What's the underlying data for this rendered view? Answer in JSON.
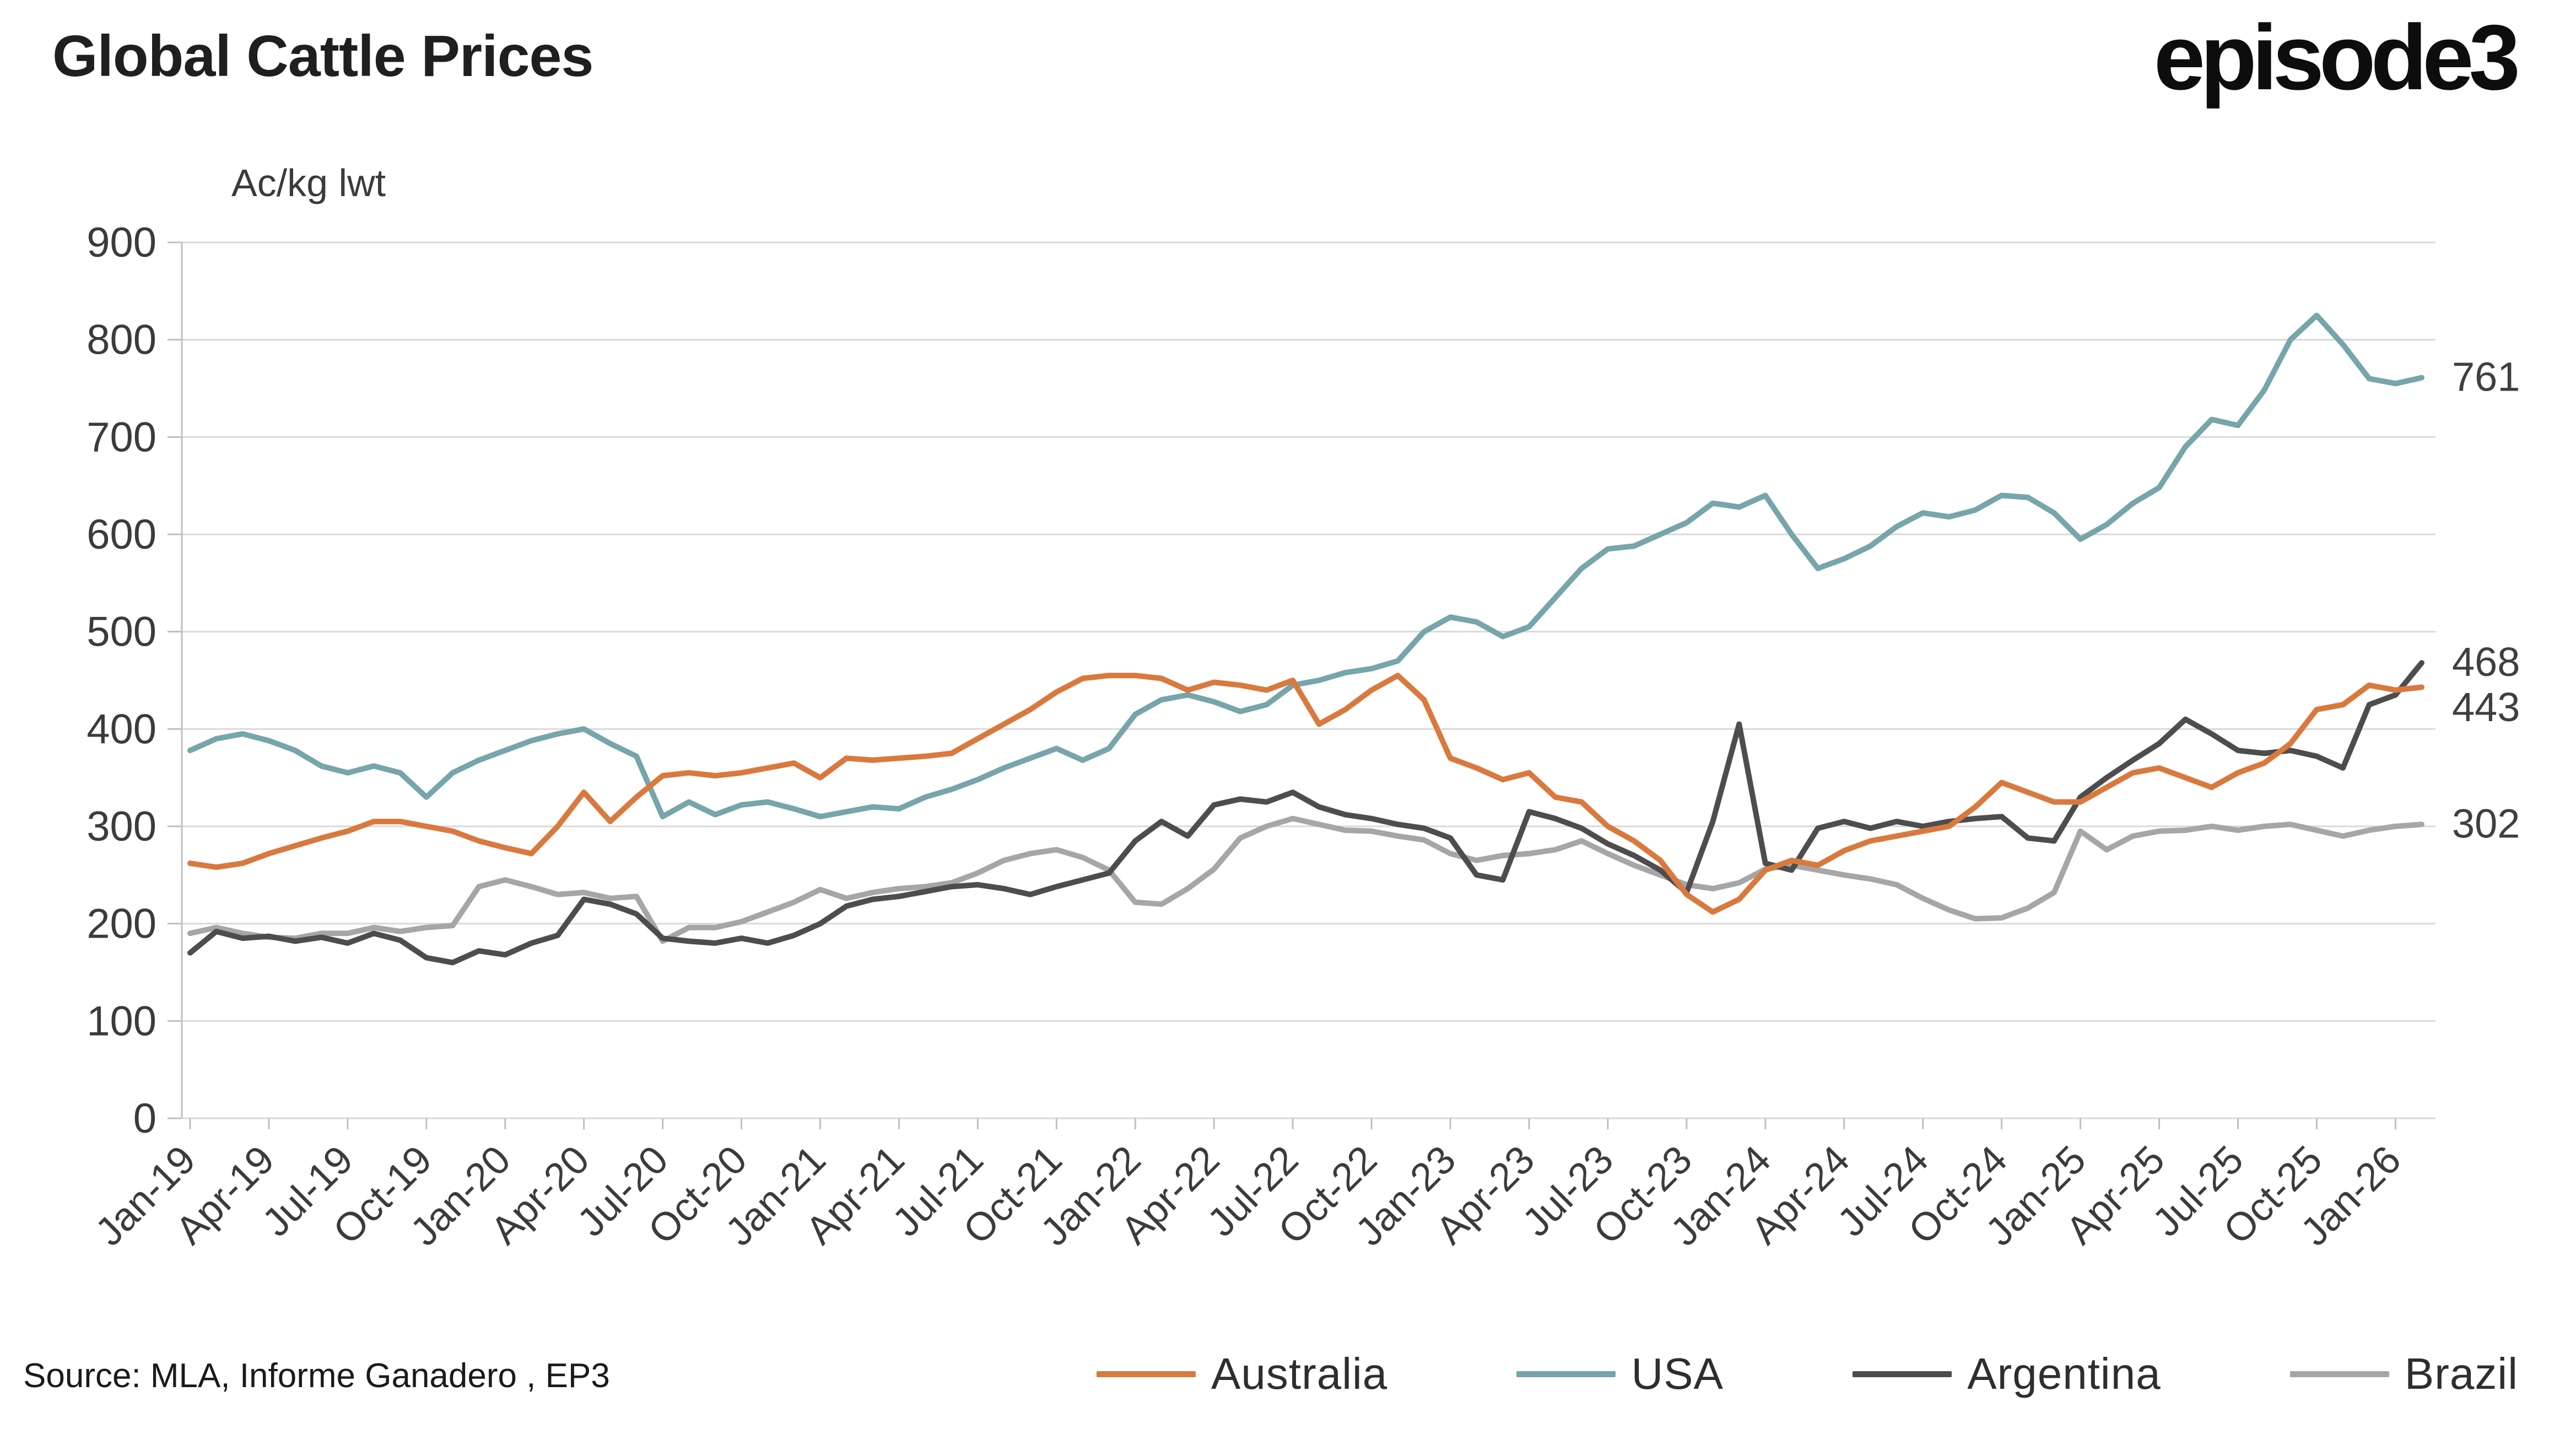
{
  "header": {
    "title": "Global Cattle Prices",
    "logo_text": "episode3"
  },
  "chart_data": {
    "type": "line",
    "title": "Global Cattle Prices",
    "unit_label": "Ac/kg lwt",
    "ylim": [
      0,
      900
    ],
    "y_tick_labels": [
      "0",
      "100",
      "200",
      "300",
      "400",
      "500",
      "600",
      "700",
      "800",
      "900"
    ],
    "x_tick_labels": [
      "Jan-19",
      "Apr-19",
      "Jul-19",
      "Oct-19",
      "Jan-20",
      "Apr-20",
      "Jul-20",
      "Oct-20",
      "Jan-21",
      "Apr-21",
      "Jul-21",
      "Oct-21",
      "Jan-22",
      "Apr-22",
      "Jul-22",
      "Oct-22",
      "Jan-23",
      "Apr-23",
      "Jul-23",
      "Oct-23",
      "Jan-24",
      "Apr-24",
      "Jul-24",
      "Oct-24",
      "Jan-25",
      "Apr-25",
      "Jul-25",
      "Oct-25",
      "Jan-26"
    ],
    "x_tick_every_n_points": 3,
    "grid": true,
    "legend_position": "bottom",
    "axis_color": "#bfbfbf",
    "grid_color": "#d9d9d9",
    "tick_label_color": "#3b3b3b",
    "end_label_color": "#3f3f3f",
    "series": [
      {
        "name": "Australia",
        "color": "#d9793e",
        "end_label": "443",
        "values": [
          262,
          258,
          262,
          272,
          280,
          288,
          295,
          305,
          305,
          300,
          295,
          285,
          278,
          272,
          300,
          335,
          305,
          330,
          352,
          355,
          352,
          355,
          360,
          365,
          350,
          370,
          368,
          370,
          372,
          375,
          390,
          405,
          420,
          438,
          452,
          455,
          455,
          452,
          440,
          448,
          445,
          440,
          450,
          405,
          420,
          440,
          455,
          430,
          370,
          360,
          348,
          355,
          330,
          325,
          300,
          285,
          265,
          230,
          212,
          225,
          255,
          265,
          260,
          275,
          285,
          290,
          295,
          300,
          320,
          345,
          335,
          325,
          325,
          340,
          355,
          360,
          350,
          340,
          355,
          365,
          385,
          420,
          425,
          445,
          440,
          443
        ]
      },
      {
        "name": "USA",
        "color": "#76a5ab",
        "end_label": "761",
        "values": [
          378,
          390,
          395,
          388,
          378,
          362,
          355,
          362,
          355,
          330,
          355,
          368,
          378,
          388,
          395,
          400,
          385,
          372,
          310,
          325,
          312,
          322,
          325,
          318,
          310,
          315,
          320,
          318,
          330,
          338,
          348,
          360,
          370,
          380,
          368,
          380,
          415,
          430,
          435,
          428,
          418,
          425,
          445,
          450,
          458,
          462,
          470,
          500,
          515,
          510,
          495,
          505,
          535,
          565,
          585,
          588,
          600,
          612,
          632,
          628,
          640,
          600,
          565,
          575,
          588,
          608,
          622,
          618,
          625,
          640,
          638,
          622,
          595,
          610,
          632,
          648,
          690,
          718,
          712,
          748,
          800,
          825,
          795,
          760,
          755,
          761
        ]
      },
      {
        "name": "Argentina",
        "color": "#4d4d4d",
        "end_label": "468",
        "values": [
          170,
          192,
          185,
          187,
          182,
          186,
          180,
          190,
          183,
          165,
          160,
          172,
          168,
          180,
          188,
          225,
          220,
          210,
          185,
          182,
          180,
          185,
          180,
          188,
          200,
          218,
          225,
          228,
          233,
          238,
          240,
          236,
          230,
          238,
          245,
          252,
          285,
          305,
          290,
          322,
          328,
          325,
          335,
          320,
          312,
          308,
          302,
          298,
          288,
          250,
          245,
          315,
          308,
          298,
          282,
          270,
          255,
          232,
          305,
          405,
          262,
          255,
          298,
          305,
          298,
          305,
          300,
          305,
          308,
          310,
          288,
          285,
          330,
          350,
          368,
          385,
          410,
          395,
          378,
          375,
          378,
          372,
          360,
          425,
          435,
          468
        ]
      },
      {
        "name": "Brazil",
        "color": "#a6a6a6",
        "end_label": "302",
        "values": [
          190,
          196,
          190,
          186,
          185,
          190,
          190,
          196,
          192,
          196,
          198,
          238,
          245,
          238,
          230,
          232,
          226,
          228,
          182,
          196,
          196,
          202,
          212,
          222,
          235,
          226,
          232,
          236,
          238,
          242,
          252,
          265,
          272,
          276,
          268,
          255,
          222,
          220,
          236,
          256,
          288,
          300,
          308,
          302,
          296,
          295,
          290,
          286,
          272,
          265,
          270,
          272,
          276,
          285,
          272,
          260,
          250,
          240,
          236,
          242,
          256,
          260,
          255,
          250,
          246,
          240,
          226,
          214,
          205,
          206,
          216,
          232,
          295,
          276,
          290,
          295,
          296,
          300,
          296,
          300,
          302,
          296,
          290,
          296,
          300,
          302
        ]
      }
    ]
  },
  "footer": {
    "source_text": "Source:  MLA, Informe Ganadero , EP3"
  }
}
